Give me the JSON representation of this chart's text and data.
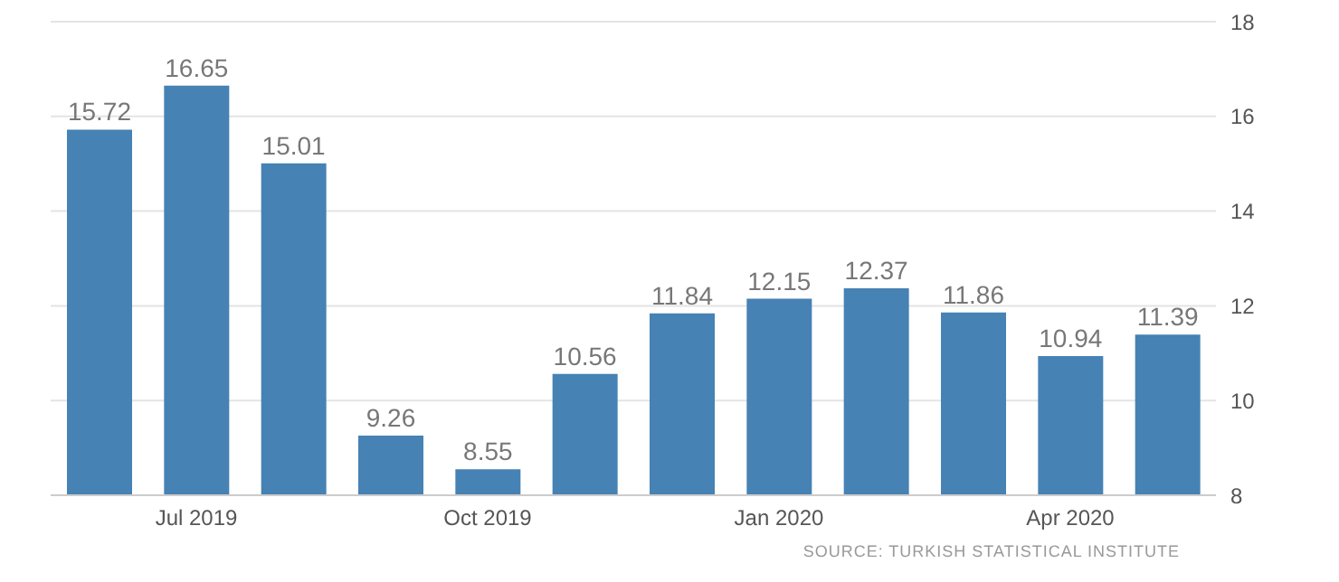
{
  "chart_data": {
    "type": "bar",
    "categories": [
      null,
      "Jul 2019",
      null,
      null,
      "Oct 2019",
      null,
      null,
      "Jan 2020",
      null,
      null,
      "Apr 2020",
      null
    ],
    "values": [
      15.72,
      16.65,
      15.01,
      9.26,
      8.55,
      10.56,
      11.84,
      12.15,
      12.37,
      11.86,
      10.94,
      11.39
    ],
    "color": "#4682b4",
    "ylim": [
      8,
      18
    ],
    "yticks": [
      8,
      10,
      12,
      14,
      16,
      18
    ],
    "grid": "y",
    "legend": false,
    "data_labels": true,
    "annotations": [
      "SOURCE: TURKISH STATISTICAL INSTITUTE"
    ]
  }
}
